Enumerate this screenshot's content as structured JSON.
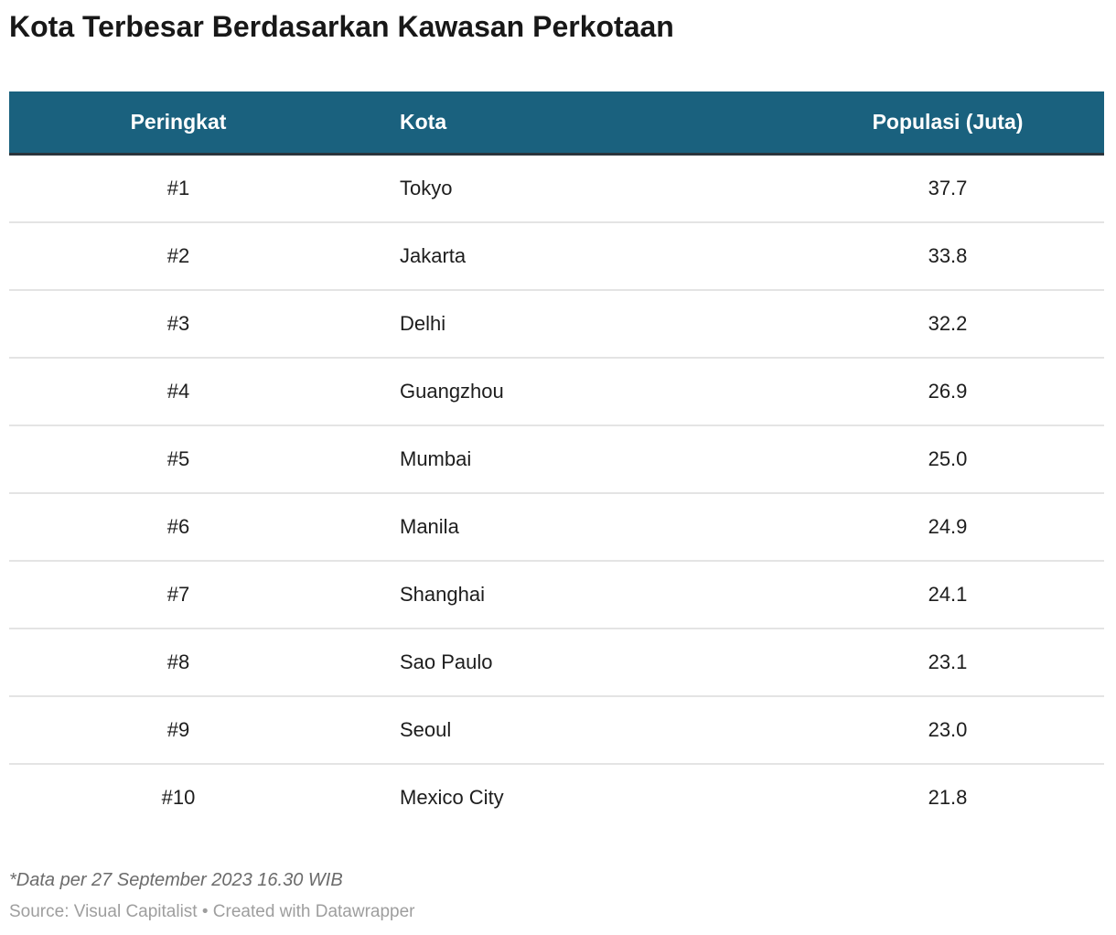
{
  "title": "Kota Terbesar Berdasarkan Kawasan Perkotaan",
  "table": {
    "columns": [
      {
        "label": "Peringkat",
        "align": "center"
      },
      {
        "label": "Kota",
        "align": "left"
      },
      {
        "label": "Populasi (Juta)",
        "align": "center"
      }
    ],
    "rows": [
      [
        "#1",
        "Tokyo",
        "37.7"
      ],
      [
        "#2",
        "Jakarta",
        "33.8"
      ],
      [
        "#3",
        "Delhi",
        "32.2"
      ],
      [
        "#4",
        "Guangzhou",
        "26.9"
      ],
      [
        "#5",
        "Mumbai",
        "25.0"
      ],
      [
        "#6",
        "Manila",
        "24.9"
      ],
      [
        "#7",
        "Shanghai",
        "24.1"
      ],
      [
        "#8",
        "Sao Paulo",
        "23.1"
      ],
      [
        "#9",
        "Seoul",
        "23.0"
      ],
      [
        "#10",
        "Mexico City",
        "21.8"
      ]
    ]
  },
  "footnote": "*Data per 27 September 2023 16.30 WIB",
  "source": "Source: Visual Capitalist • Created with Datawrapper",
  "colors": {
    "header_bg": "#1a617e",
    "header_text": "#ffffff",
    "header_border": "#2a343c",
    "row_divider": "#e4e4e4",
    "body_text": "#1d1d1d",
    "title_text": "#181818",
    "footnote_text": "#6b6b6b",
    "source_text": "#9e9e9e",
    "page_bg": "#ffffff"
  },
  "chart_data": {
    "type": "table",
    "title": "Kota Terbesar Berdasarkan Kawasan Perkotaan",
    "columns": [
      "Peringkat",
      "Kota",
      "Populasi (Juta)"
    ],
    "rows": [
      [
        "#1",
        "Tokyo",
        37.7
      ],
      [
        "#2",
        "Jakarta",
        33.8
      ],
      [
        "#3",
        "Delhi",
        32.2
      ],
      [
        "#4",
        "Guangzhou",
        26.9
      ],
      [
        "#5",
        "Mumbai",
        25.0
      ],
      [
        "#6",
        "Manila",
        24.9
      ],
      [
        "#7",
        "Shanghai",
        24.1
      ],
      [
        "#8",
        "Sao Paulo",
        23.1
      ],
      [
        "#9",
        "Seoul",
        23.0
      ],
      [
        "#10",
        "Mexico City",
        21.8
      ]
    ],
    "footnote": "*Data per 27 September 2023 16.30 WIB",
    "source": "Source: Visual Capitalist • Created with Datawrapper",
    "layout_hints": {
      "header_background": "#1a617e",
      "column_alignments": [
        "center",
        "left",
        "center"
      ],
      "row_dividers": true
    }
  }
}
